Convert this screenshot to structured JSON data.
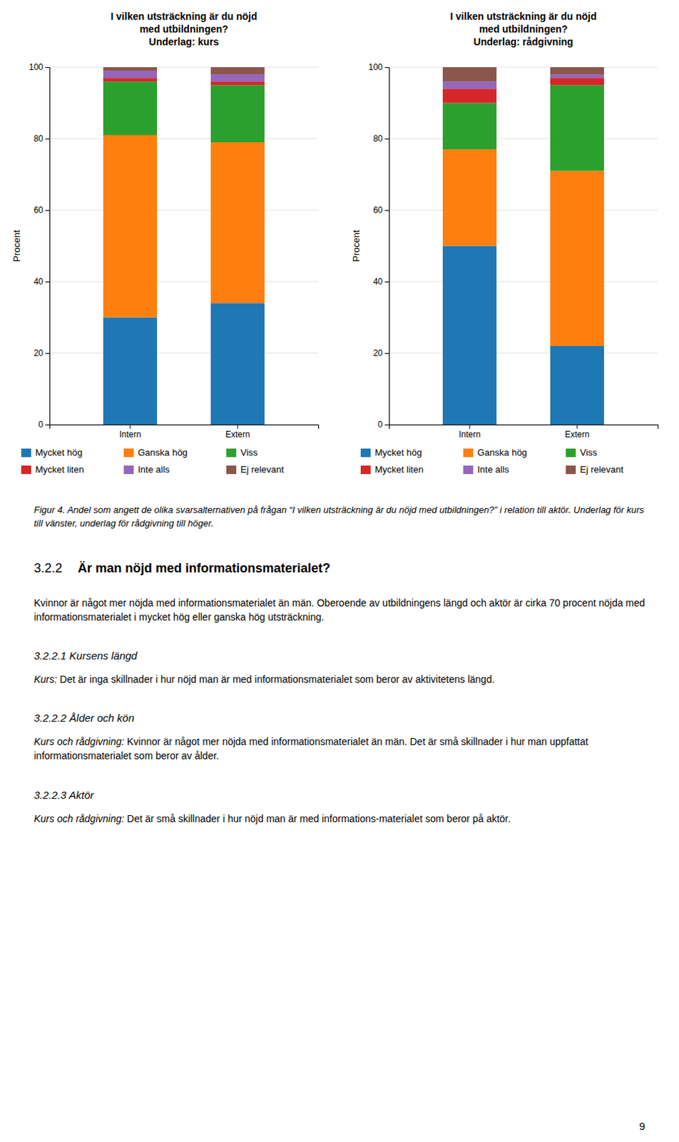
{
  "chart_data": [
    {
      "type": "bar",
      "stacked": true,
      "title": "I vilken utsträckning är du nöjd\nmed utbildningen?\nUnderlag: kurs",
      "categories": [
        "Intern",
        "Extern"
      ],
      "series": [
        {
          "name": "Mycket hög",
          "values": [
            30,
            34
          ]
        },
        {
          "name": "Ganska hög",
          "values": [
            51,
            45
          ]
        },
        {
          "name": "Viss",
          "values": [
            15,
            16
          ]
        },
        {
          "name": "Mycket liten",
          "values": [
            1,
            1
          ]
        },
        {
          "name": "Inte alls",
          "values": [
            2,
            2
          ]
        },
        {
          "name": "Ej relevant",
          "values": [
            1,
            2
          ]
        }
      ],
      "ylabel": "Procent",
      "ylim": [
        0,
        100
      ],
      "yticks": [
        0,
        20,
        40,
        60,
        80,
        100
      ],
      "grid": true,
      "legend": "bottom"
    },
    {
      "type": "bar",
      "stacked": true,
      "title": "I vilken utsträckning är du nöjd\nmed utbildningen?\nUnderlag: rådgivning",
      "categories": [
        "Intern",
        "Extern"
      ],
      "series": [
        {
          "name": "Mycket hög",
          "values": [
            50,
            22
          ]
        },
        {
          "name": "Ganska hög",
          "values": [
            27,
            49
          ]
        },
        {
          "name": "Viss",
          "values": [
            13,
            24
          ]
        },
        {
          "name": "Mycket liten",
          "values": [
            4,
            2
          ]
        },
        {
          "name": "Inte alls",
          "values": [
            2,
            1
          ]
        },
        {
          "name": "Ej relevant",
          "values": [
            4,
            2
          ]
        }
      ],
      "ylabel": "Procent",
      "ylim": [
        0,
        100
      ],
      "yticks": [
        0,
        20,
        40,
        60,
        80,
        100
      ],
      "grid": true,
      "legend": "bottom"
    }
  ],
  "annotations": [
    "Figur 4. Andel som angett de olika svarsalternativen på frågan “I vilken utsträckning är du nöjd med utbildningen?” i relation till aktör. Underlag för kurs till vänster, underlag för rådgivning till höger.",
    "3.2.2",
    "Är man nöjd med informationsmaterialet?",
    "Kvinnor är något mer nöjda med informationsmaterialet än män. Oberoende av utbildningens längd och aktör är cirka 70 procent nöjda med informationsmaterialet i mycket hög eller ganska hög utsträckning.",
    "3.2.2.1 Kursens längd",
    "Kurs:",
    " Det är inga skillnader i hur nöjd man är med informationsmaterialet som beror av aktivitetens längd.",
    "3.2.2.2 Ålder och kön",
    "Kurs och rådgivning:",
    " Kvinnor är något mer nöjda med informationsmaterialet än män. Det är små skillnader i hur man uppfattat informationsmaterialet som beror av ålder.",
    "3.2.2.3 Aktör",
    "Kurs och rådgivning:",
    " Det är små skillnader i hur nöjd man är med informations-materialet som beror på aktör.",
    "9"
  ]
}
